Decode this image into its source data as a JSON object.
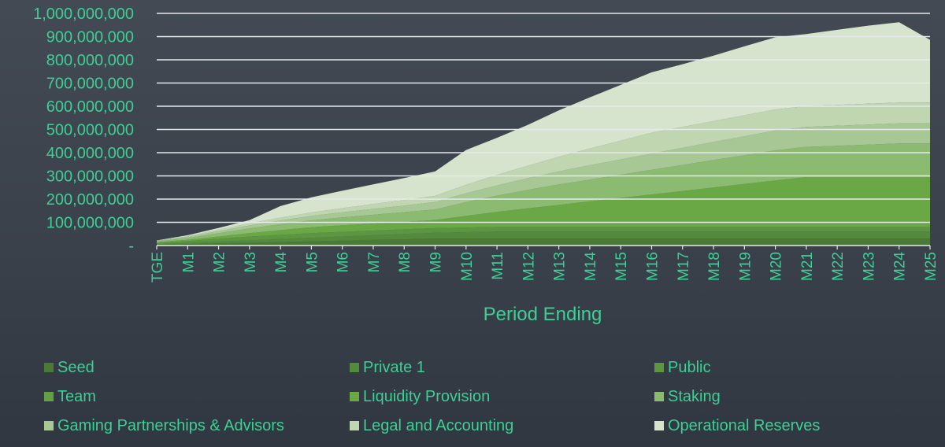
{
  "chart_data": {
    "type": "area",
    "stacked": true,
    "title": "",
    "xlabel": "Period Ending",
    "ylabel": "",
    "ylim": [
      0,
      1000000000
    ],
    "y_ticks": [
      {
        "value": 0,
        "label": "-"
      },
      {
        "value": 100000000,
        "label": "100,000,000"
      },
      {
        "value": 200000000,
        "label": "200,000,000"
      },
      {
        "value": 300000000,
        "label": "300,000,000"
      },
      {
        "value": 400000000,
        "label": "400,000,000"
      },
      {
        "value": 500000000,
        "label": "500,000,000"
      },
      {
        "value": 600000000,
        "label": "600,000,000"
      },
      {
        "value": 700000000,
        "label": "700,000,000"
      },
      {
        "value": 800000000,
        "label": "800,000,000"
      },
      {
        "value": 900000000,
        "label": "900,000,000"
      },
      {
        "value": 1000000000,
        "label": "1,000,000,000"
      }
    ],
    "categories": [
      "TGE",
      "M1",
      "M2",
      "M3",
      "M4",
      "M5",
      "M6",
      "M7",
      "M8",
      "M9",
      "M10",
      "M11",
      "M12",
      "M13",
      "M14",
      "M15",
      "M16",
      "M17",
      "M18",
      "M19",
      "M20",
      "M21",
      "M22",
      "M23",
      "M24",
      "M25"
    ],
    "grid": true,
    "legend_position": "bottom",
    "series": [
      {
        "name": "Seed",
        "color": "#4a7a36",
        "values": [
          3000000,
          6000000,
          9000000,
          12000000,
          15000000,
          18000000,
          21000000,
          24000000,
          27000000,
          30000000,
          30000000,
          30000000,
          30000000,
          30000000,
          30000000,
          30000000,
          30000000,
          30000000,
          30000000,
          30000000,
          30000000,
          30000000,
          30000000,
          30000000,
          30000000,
          30000000
        ]
      },
      {
        "name": "Private 1",
        "color": "#548a3d",
        "values": [
          3000000,
          5500000,
          8000000,
          10500000,
          13000000,
          15500000,
          18000000,
          20500000,
          23000000,
          25000000,
          27500000,
          30000000,
          30000000,
          30000000,
          30000000,
          30000000,
          30000000,
          30000000,
          30000000,
          30000000,
          30000000,
          30000000,
          30000000,
          30000000,
          30000000,
          30000000
        ]
      },
      {
        "name": "Public",
        "color": "#5d9642",
        "values": [
          4000000,
          8000000,
          12000000,
          16000000,
          18000000,
          20000000,
          20000000,
          20000000,
          20000000,
          20000000,
          20000000,
          20000000,
          20000000,
          20000000,
          20000000,
          20000000,
          20000000,
          20000000,
          20000000,
          20000000,
          20000000,
          20000000,
          20000000,
          20000000,
          20000000,
          20000000
        ]
      },
      {
        "name": "Team",
        "color": "#62a043",
        "values": [
          0,
          0,
          0,
          0,
          0,
          0,
          0,
          0,
          0,
          0,
          0,
          0,
          0,
          0,
          0,
          0,
          0,
          0,
          0,
          0,
          0,
          0,
          0,
          0,
          0,
          0
        ]
      },
      {
        "name": "Liquidity Provision",
        "color": "#69a845",
        "values": [
          5000000,
          5000000,
          10000000,
          15000000,
          20000000,
          25000000,
          28000000,
          30000000,
          32000000,
          35000000,
          50000000,
          65000000,
          80000000,
          95000000,
          110000000,
          125000000,
          140000000,
          155000000,
          170000000,
          185000000,
          200000000,
          215000000,
          215000000,
          215000000,
          215000000,
          215000000
        ]
      },
      {
        "name": "Staking",
        "color": "#8bba71",
        "values": [
          3000000,
          8000000,
          14000000,
          20000000,
          26000000,
          30000000,
          34000000,
          38000000,
          42000000,
          45000000,
          60000000,
          70000000,
          80000000,
          88000000,
          94000000,
          100000000,
          106000000,
          112000000,
          118000000,
          124000000,
          130000000,
          130000000,
          135000000,
          140000000,
          145000000,
          145000000
        ]
      },
      {
        "name": "Gaming Partnerships & Advisors",
        "color": "#a7c894",
        "values": [
          2000000,
          5000000,
          9000000,
          13000000,
          16000000,
          19000000,
          22000000,
          25000000,
          28000000,
          32000000,
          38000000,
          44000000,
          50000000,
          56000000,
          62000000,
          66000000,
          70000000,
          74000000,
          78000000,
          82000000,
          86000000,
          86000000,
          86000000,
          86000000,
          86000000,
          86000000
        ]
      },
      {
        "name": "Legal and Accounting",
        "color": "#bfd6b1",
        "values": [
          1000000,
          3000000,
          6000000,
          9000000,
          12000000,
          15000000,
          18000000,
          21000000,
          24000000,
          27000000,
          36000000,
          45000000,
          54000000,
          63000000,
          72000000,
          81000000,
          90000000,
          90000000,
          90000000,
          90000000,
          90000000,
          90000000,
          90000000,
          90000000,
          90000000,
          90000000
        ]
      },
      {
        "name": "Operational Reserves",
        "color": "#d6e4cd",
        "values": [
          1000000,
          4000000,
          8000000,
          14000000,
          50000000,
          65000000,
          75000000,
          85000000,
          95000000,
          105000000,
          150000000,
          160000000,
          176000000,
          200000000,
          220000000,
          240000000,
          260000000,
          270000000,
          282000000,
          297000000,
          311000000,
          310000000,
          323000000,
          336000000,
          346000000,
          270000000
        ]
      }
    ]
  }
}
